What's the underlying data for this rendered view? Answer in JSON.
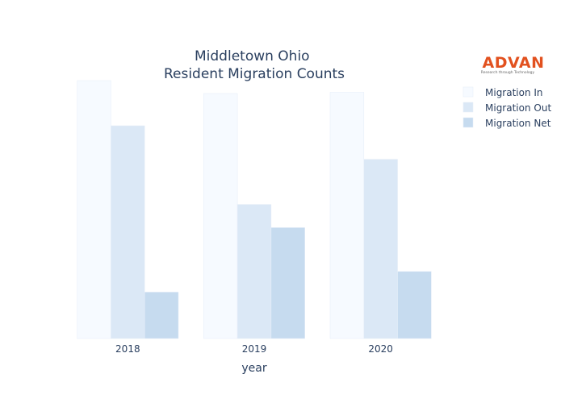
{
  "logo": {
    "name": "ADVAN",
    "tagline": "Research through Technology"
  },
  "chart_data": {
    "type": "bar",
    "title_lines": [
      "Middletown Ohio",
      "Resident Migration Counts"
    ],
    "xlabel": "year",
    "ylabel": "",
    "categories": [
      "2018",
      "2019",
      "2020"
    ],
    "series": [
      {
        "name": "Migration In",
        "color": "#f6faff",
        "values": [
          1000,
          950,
          955
        ]
      },
      {
        "name": "Migration Out",
        "color": "#dbe8f6",
        "values": [
          825,
          520,
          695
        ]
      },
      {
        "name": "Migration Net",
        "color": "#c6dbef",
        "values": [
          180,
          430,
          260
        ]
      }
    ],
    "ylim": [
      0,
      1000
    ],
    "grid": false,
    "y_ticks_visible": false,
    "legend": "top-right"
  }
}
